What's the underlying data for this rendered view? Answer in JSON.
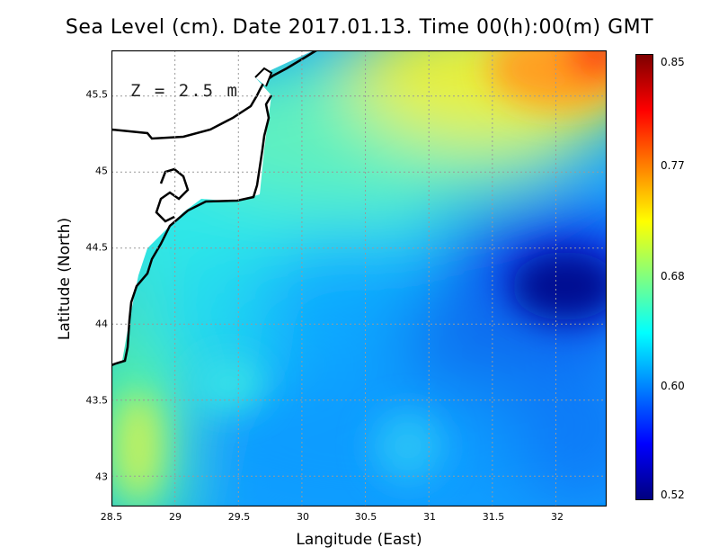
{
  "title": "Sea Level (cm). Date 2017.01.13. Time 00(h):00(m) GMT",
  "depth_label": "Z = 2.5 m",
  "axes": {
    "xlabel": "Langitude (East)",
    "ylabel": "Latitude (North)",
    "x_ticks": [
      "28.5",
      "29",
      "29.5",
      "30",
      "30.5",
      "31",
      "31.5",
      "32"
    ],
    "y_ticks": [
      "45.5",
      "45",
      "44.5",
      "44",
      "43.5",
      "43"
    ]
  },
  "colorbar": {
    "ticks": [
      "0.85",
      "0.77",
      "0.68",
      "0.60",
      "0.52"
    ],
    "colors": [
      "#00007f",
      "#0000ff",
      "#0080ff",
      "#00ffff",
      "#80ff80",
      "#ffff00",
      "#ff8000",
      "#ff0000",
      "#7f0000"
    ]
  },
  "chart_data": {
    "type": "heatmap",
    "title": "Sea Level (cm). Date 2017.01.13. Time 00(h):00(m) GMT",
    "xlabel": "Langitude (East)",
    "ylabel": "Latitude (North)",
    "xlim": [
      28.5,
      32.4
    ],
    "ylim": [
      42.8,
      45.8
    ],
    "x_ticks": [
      28.5,
      29,
      29.5,
      30,
      30.5,
      31,
      31.5,
      32
    ],
    "y_ticks": [
      43,
      43.5,
      44,
      44.5,
      45,
      45.5
    ],
    "color_range": [
      0.52,
      0.85
    ],
    "grid": true,
    "features": [
      {
        "lon": 32.25,
        "lat": 45.75,
        "value": 0.82
      },
      {
        "lon": 31.6,
        "lat": 45.6,
        "value": 0.72
      },
      {
        "lon": 30.5,
        "lat": 45.6,
        "value": 0.69
      },
      {
        "lon": 32.1,
        "lat": 44.3,
        "value": 0.53
      },
      {
        "lon": 31.4,
        "lat": 43.9,
        "value": 0.58
      },
      {
        "lon": 30.0,
        "lat": 43.6,
        "value": 0.6
      },
      {
        "lon": 30.9,
        "lat": 43.2,
        "value": 0.61
      },
      {
        "lon": 28.6,
        "lat": 43.7,
        "value": 0.68
      },
      {
        "lon": 29.4,
        "lat": 44.6,
        "value": 0.66
      },
      {
        "lon": 30.4,
        "lat": 44.9,
        "value": 0.65
      }
    ]
  }
}
